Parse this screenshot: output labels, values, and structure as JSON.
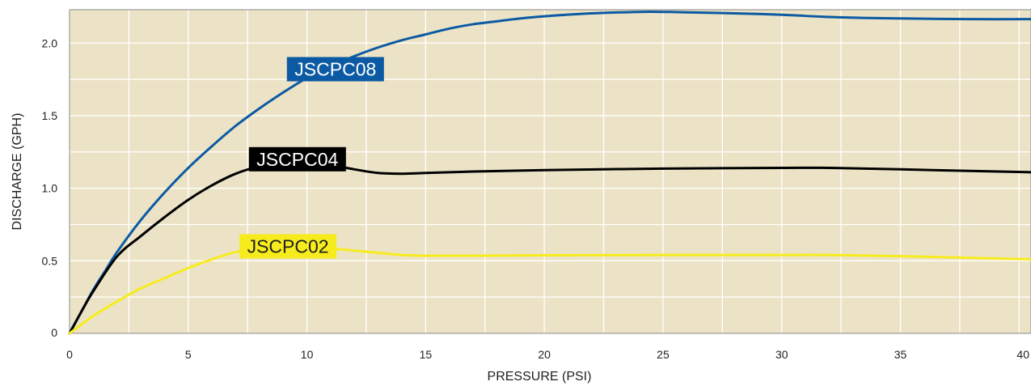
{
  "chart_data": {
    "type": "line",
    "xlabel": "PRESSURE (PSI)",
    "ylabel": "DISCHARGE (GPH)",
    "xlim": [
      0,
      40.5
    ],
    "ylim": [
      0,
      2.23
    ],
    "x_ticks": [
      {
        "value": 0,
        "label": "0"
      },
      {
        "value": 5,
        "label": "5"
      },
      {
        "value": 10,
        "label": "10"
      },
      {
        "value": 15,
        "label": "15"
      },
      {
        "value": 20,
        "label": "20"
      },
      {
        "value": 25,
        "label": "25"
      },
      {
        "value": 30,
        "label": "30"
      },
      {
        "value": 35,
        "label": "35"
      },
      {
        "value": 40,
        "label": "40"
      }
    ],
    "y_ticks": [
      {
        "value": 0,
        "label": "0"
      },
      {
        "value": 0.5,
        "label": "0.5"
      },
      {
        "value": 1.0,
        "label": "1.0"
      },
      {
        "value": 1.5,
        "label": "1.5"
      },
      {
        "value": 2.0,
        "label": "2.0"
      }
    ],
    "grid": true,
    "series": [
      {
        "name": "JSCPC08",
        "color": "#0b5aa3",
        "label_text_color": "#ffffff",
        "x": [
          0,
          0.5,
          1,
          1.5,
          2,
          3,
          4,
          5,
          6,
          7,
          8,
          9,
          10,
          11,
          12,
          13,
          14,
          15,
          16,
          17,
          18,
          19,
          20,
          22,
          24,
          25,
          26,
          28,
          30,
          32,
          34,
          36,
          38,
          40.5
        ],
        "y": [
          0,
          0.15,
          0.3,
          0.43,
          0.56,
          0.78,
          0.97,
          1.14,
          1.29,
          1.43,
          1.55,
          1.66,
          1.76,
          1.84,
          1.91,
          1.97,
          2.02,
          2.06,
          2.1,
          2.13,
          2.15,
          2.17,
          2.185,
          2.205,
          2.215,
          2.215,
          2.212,
          2.205,
          2.195,
          2.18,
          2.172,
          2.168,
          2.165,
          2.165
        ],
        "label_x": 11.2,
        "label_y": 1.82
      },
      {
        "name": "JSCPC04",
        "color": "#000000",
        "label_text_color": "#ffffff",
        "x": [
          0,
          0.5,
          1,
          2,
          3,
          4,
          5,
          6,
          7,
          8,
          9,
          10,
          11,
          12,
          13,
          14,
          15,
          17,
          20,
          25,
          30,
          32,
          35,
          40.5
        ],
        "y": [
          0,
          0.15,
          0.29,
          0.53,
          0.67,
          0.8,
          0.92,
          1.02,
          1.1,
          1.15,
          1.17,
          1.175,
          1.16,
          1.13,
          1.105,
          1.1,
          1.105,
          1.115,
          1.125,
          1.135,
          1.14,
          1.14,
          1.13,
          1.11
        ],
        "label_x": 9.6,
        "label_y": 1.2
      },
      {
        "name": "JSCPC02",
        "color": "#f6ec1d",
        "label_text_color": "#1f1f1f",
        "x": [
          0,
          1,
          2,
          3,
          4,
          5,
          6,
          7,
          8,
          9,
          10,
          11,
          12,
          13,
          14,
          15,
          17,
          20,
          25,
          30,
          32,
          35,
          40.5
        ],
        "y": [
          0,
          0.12,
          0.22,
          0.31,
          0.38,
          0.45,
          0.51,
          0.56,
          0.585,
          0.59,
          0.59,
          0.585,
          0.57,
          0.555,
          0.54,
          0.535,
          0.535,
          0.538,
          0.54,
          0.54,
          0.54,
          0.532,
          0.51
        ],
        "label_x": 9.2,
        "label_y": 0.6
      }
    ]
  },
  "colors": {
    "plot_background": "#ece3c6",
    "gridline": "#ffffff",
    "axis_frame": "#8a8a8a"
  }
}
